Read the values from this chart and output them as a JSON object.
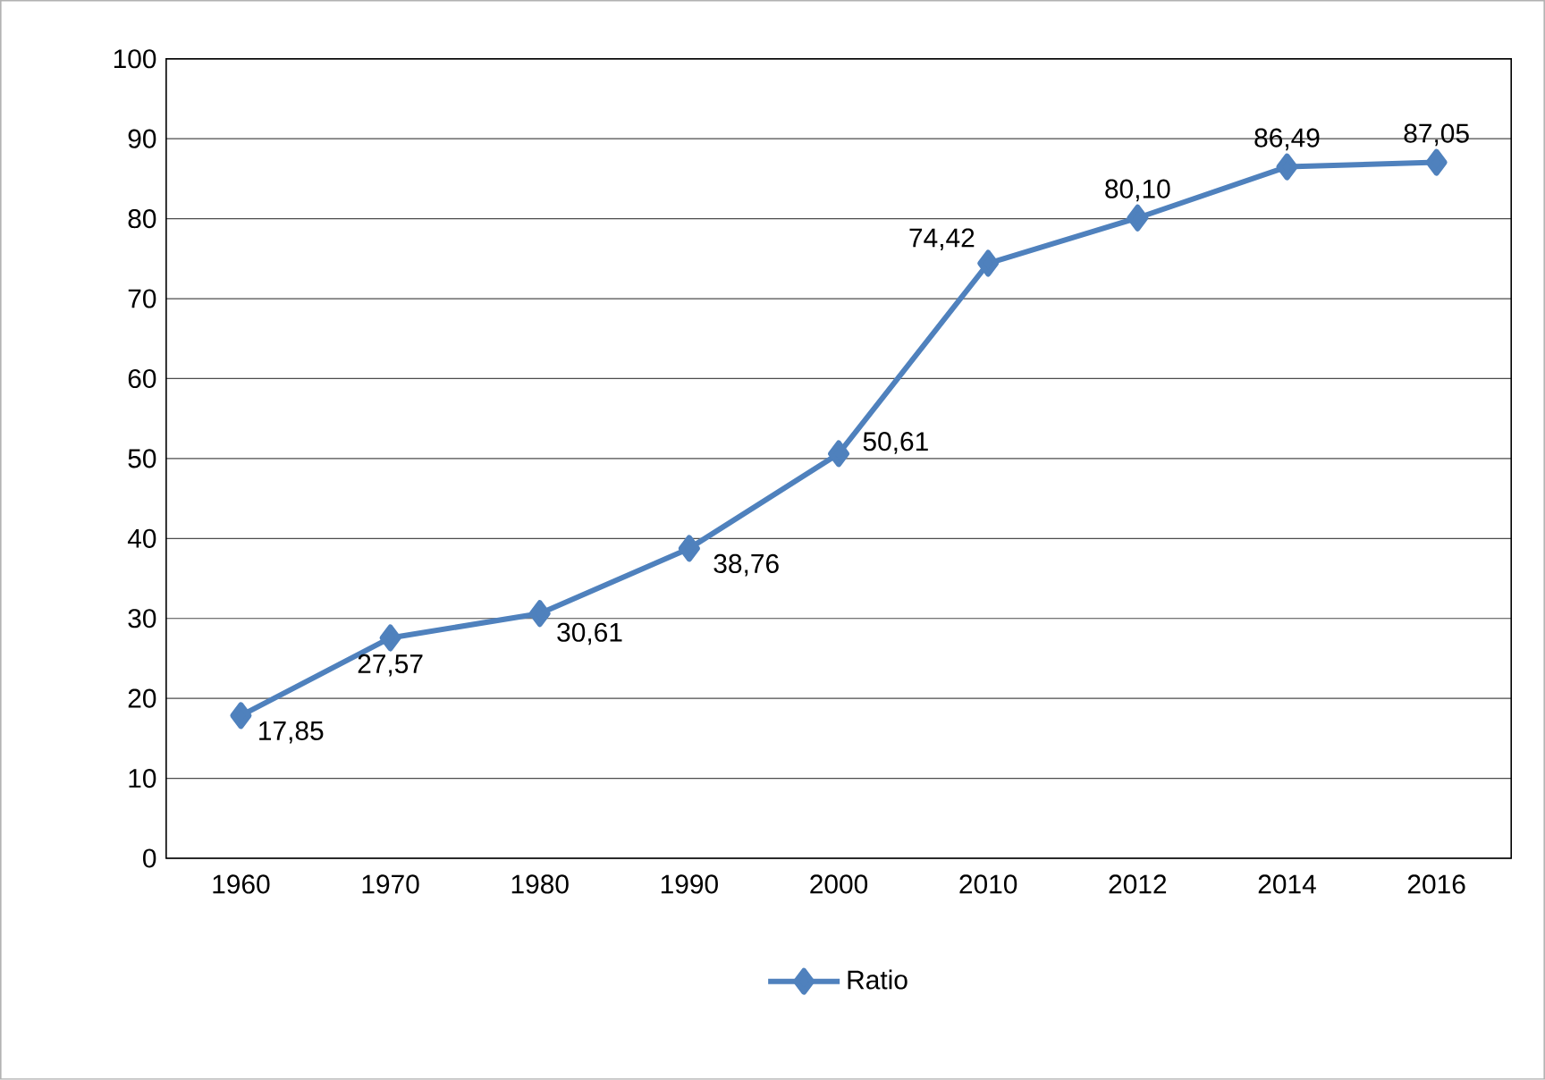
{
  "chart_data": {
    "type": "line",
    "categories": [
      "1960",
      "1970",
      "1980",
      "1990",
      "2000",
      "2010",
      "2012",
      "2014",
      "2016"
    ],
    "series": [
      {
        "name": "Ratio",
        "color": "#4f81bd",
        "values": [
          17.85,
          27.57,
          30.61,
          38.76,
          50.61,
          74.42,
          80.1,
          86.49,
          87.05
        ],
        "value_labels": [
          "17,85",
          "27,57",
          "30,61",
          "38,76",
          "50,61",
          "74,42",
          "80,10",
          "86,49",
          "87,05"
        ]
      }
    ],
    "ylim": [
      0,
      100
    ],
    "yticks": [
      0,
      10,
      20,
      30,
      40,
      50,
      60,
      70,
      80,
      90,
      100
    ],
    "grid": "y",
    "legend": "bottom",
    "marker": "diamond",
    "line_style": "solid"
  }
}
